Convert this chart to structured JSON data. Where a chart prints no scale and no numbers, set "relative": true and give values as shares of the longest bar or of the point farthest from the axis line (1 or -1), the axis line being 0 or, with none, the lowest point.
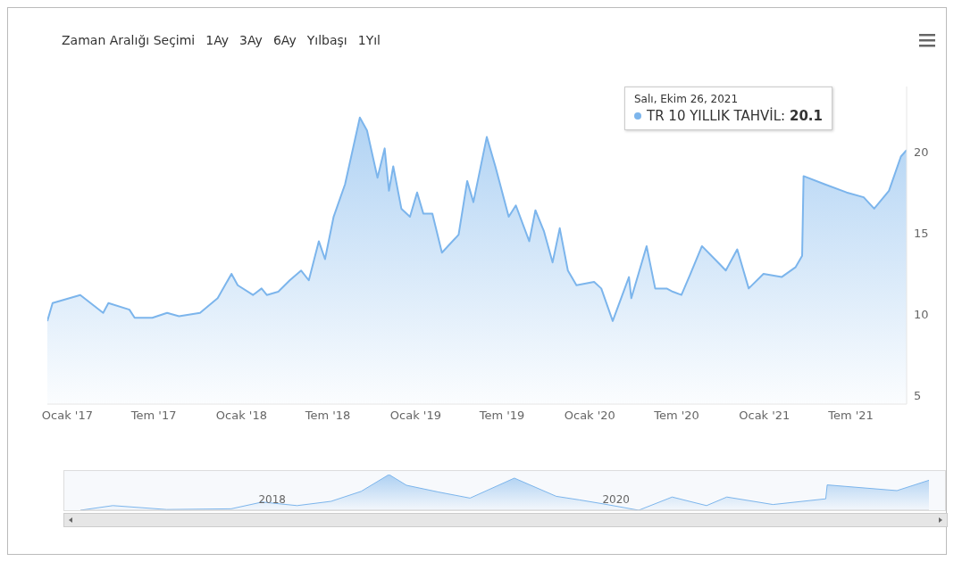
{
  "chart_data": [
    {
      "type": "area",
      "annotations": [
        "Zaman Aralığı Seçimi",
        "1Ay",
        "3Ay",
        "6Ay",
        "Yılbaşı",
        "1Yıl",
        "Salı, Ekim 26, 2021",
        "TR 10 YILLIK TAHVİL: 20.1"
      ],
      "xlim": [
        "2016-11-20",
        "2021-10-26"
      ],
      "ylim": [
        4.5,
        24
      ],
      "yticks": [
        5,
        10,
        15,
        20
      ],
      "xticks": [
        {
          "value": "2017-01-01",
          "label": "Ocak '17"
        },
        {
          "value": "2017-07-01",
          "label": "Tem '17"
        },
        {
          "value": "2018-01-01",
          "label": "Ocak '18"
        },
        {
          "value": "2018-07-01",
          "label": "Tem '18"
        },
        {
          "value": "2019-01-01",
          "label": "Ocak '19"
        },
        {
          "value": "2019-07-01",
          "label": "Tem '19"
        },
        {
          "value": "2020-01-01",
          "label": "Ocak '20"
        },
        {
          "value": "2020-07-01",
          "label": "Tem '20"
        },
        {
          "value": "2021-01-01",
          "label": "Ocak '21"
        },
        {
          "value": "2021-07-01",
          "label": "Tem '21"
        }
      ],
      "series": [
        {
          "color": "#7cb5ec",
          "x": [
            "2016-11-20",
            "2016-12-01",
            "2017-01-28",
            "2017-03-17",
            "2017-03-28",
            "2017-05-11",
            "2017-05-22",
            "2017-06-28",
            "2017-07-29",
            "2017-08-23",
            "2017-10-06",
            "2017-11-12",
            "2017-12-11",
            "2017-12-24",
            "2018-01-25",
            "2018-02-12",
            "2018-02-23",
            "2018-03-19",
            "2018-04-12",
            "2018-05-06",
            "2018-05-22",
            "2018-06-12",
            "2018-06-25",
            "2018-07-13",
            "2018-08-06",
            "2018-09-06",
            "2018-09-21",
            "2018-10-13",
            "2018-10-28",
            "2018-11-06",
            "2018-11-15",
            "2018-12-02",
            "2018-12-20",
            "2019-01-04",
            "2019-01-17",
            "2019-02-05",
            "2019-02-25",
            "2019-04-01",
            "2019-04-19",
            "2019-05-02",
            "2019-05-30",
            "2019-06-17",
            "2019-07-15",
            "2019-07-30",
            "2019-08-27",
            "2019-09-09",
            "2019-09-27",
            "2019-10-15",
            "2019-10-30",
            "2019-11-16",
            "2019-12-04",
            "2020-01-10",
            "2020-01-25",
            "2020-02-18",
            "2020-03-23",
            "2020-03-28",
            "2020-04-29",
            "2020-05-17",
            "2020-06-10",
            "2020-06-23",
            "2020-07-11",
            "2020-07-30",
            "2020-08-23",
            "2020-09-29",
            "2020-10-12",
            "2020-11-05",
            "2020-11-29",
            "2020-12-30",
            "2021-02-06",
            "2021-03-07",
            "2021-03-21",
            "2021-03-24",
            "2021-05-07",
            "2021-06-22",
            "2021-07-28",
            "2021-08-19",
            "2021-09-19",
            "2021-10-14",
            "2021-10-26"
          ],
          "values": [
            9.6,
            10.7,
            11.2,
            10.1,
            10.7,
            10.3,
            9.8,
            9.8,
            10.1,
            9.9,
            10.1,
            11.0,
            12.5,
            11.8,
            11.2,
            11.6,
            11.2,
            11.4,
            12.1,
            12.7,
            12.1,
            14.5,
            13.4,
            16.0,
            18.0,
            22.1,
            21.3,
            18.4,
            20.2,
            17.6,
            19.1,
            16.5,
            16.0,
            17.5,
            16.2,
            16.2,
            13.8,
            14.9,
            18.2,
            16.9,
            20.9,
            19.1,
            16.0,
            16.7,
            14.5,
            16.4,
            15.1,
            13.2,
            15.3,
            12.7,
            11.8,
            12.0,
            11.6,
            9.6,
            12.3,
            11.0,
            14.2,
            11.6,
            11.6,
            11.4,
            11.2,
            12.5,
            14.2,
            13.1,
            12.7,
            14.0,
            11.6,
            12.5,
            12.3,
            12.9,
            13.6,
            18.5,
            18.0,
            17.5,
            17.2,
            16.5,
            17.6,
            19.7,
            20.1
          ]
        }
      ]
    },
    {
      "type": "area",
      "relative": true,
      "xlim": [
        "2016-11-20",
        "2021-10-26"
      ],
      "xticks": [
        {
          "value": "2018-01-01",
          "label": "2018"
        },
        {
          "value": "2020-01-01",
          "label": "2020"
        }
      ],
      "series": [
        {
          "color": "#7cb5ec",
          "x": [
            "2016-11-20",
            "2017-01-28",
            "2017-05-22",
            "2017-10-06",
            "2017-12-11",
            "2018-02-23",
            "2018-05-06",
            "2018-07-09",
            "2018-09-06",
            "2018-10-13",
            "2018-12-20",
            "2019-02-25",
            "2019-05-30",
            "2019-08-27",
            "2019-10-15",
            "2019-12-04",
            "2020-02-18",
            "2020-04-29",
            "2020-07-11",
            "2020-08-23",
            "2020-11-29",
            "2021-03-21",
            "2021-03-24",
            "2021-08-19",
            "2021-10-26"
          ],
          "values": [
            0,
            0.13,
            0.02,
            0.04,
            0.23,
            0.13,
            0.25,
            0.53,
            1,
            0.7,
            0.51,
            0.34,
            0.9,
            0.39,
            0.29,
            0.18,
            0,
            0.37,
            0.13,
            0.37,
            0.16,
            0.32,
            0.71,
            0.55,
            0.84
          ]
        }
      ]
    }
  ]
}
